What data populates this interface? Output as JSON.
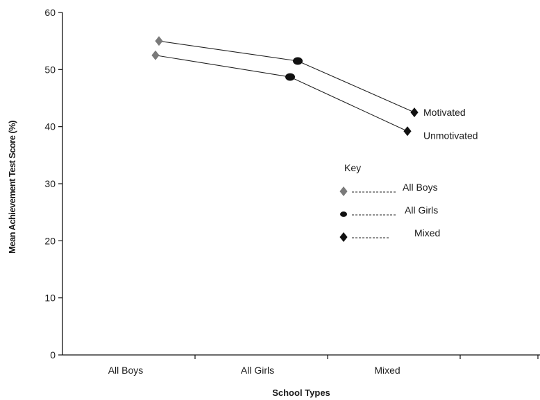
{
  "chart_data": {
    "type": "line",
    "title": "",
    "xlabel": "School Types",
    "ylabel": "Mean Achievement Test Score (%)",
    "categories": [
      "All Boys",
      "All Girls",
      "Mixed"
    ],
    "ylim": [
      0,
      60
    ],
    "yticks": [
      "0",
      "10",
      "20",
      "30",
      "40",
      "50",
      "60"
    ],
    "grid": false,
    "series": [
      {
        "name": "Motivated",
        "values": [
          55,
          51.5,
          42.5
        ]
      },
      {
        "name": "Unmotivated",
        "values": [
          52.5,
          48.7,
          39.2
        ]
      }
    ],
    "point_markers": [
      "diamond-gray",
      "circle-black",
      "diamond-black"
    ],
    "key": {
      "title": "Key",
      "placement": "right-center",
      "items": [
        {
          "label": "All Boys",
          "marker": "diamond-gray",
          "color": "#7a7a7a"
        },
        {
          "label": "All Girls",
          "marker": "circle-black",
          "color": "#111111"
        },
        {
          "label": "Mixed",
          "marker": "diamond-black",
          "color": "#111111"
        }
      ]
    },
    "colors": {
      "line": "#222222",
      "axis": "#111111",
      "gray_marker": "#7a7a7a",
      "black_marker": "#111111"
    }
  }
}
